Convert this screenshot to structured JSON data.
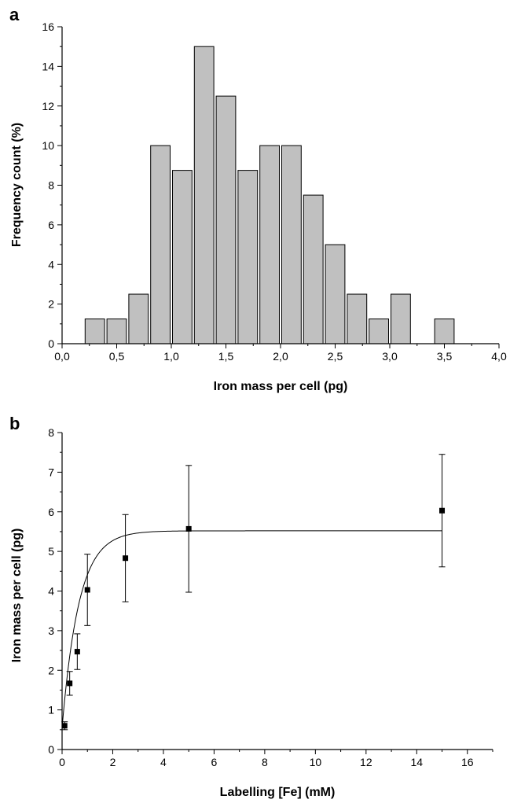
{
  "chart_data": [
    {
      "panel": "a",
      "type": "bar",
      "xlabel": "Iron mass per cell (pg)",
      "ylabel": "Frequency count (%)",
      "xlim": [
        0,
        4
      ],
      "ylim": [
        0,
        16
      ],
      "xticks": [
        "0,0",
        "0,5",
        "1,0",
        "1,5",
        "2,0",
        "2,5",
        "3,0",
        "3,5",
        "4,0"
      ],
      "yticks": [
        "0",
        "2",
        "4",
        "6",
        "8",
        "10",
        "12",
        "14",
        "16"
      ],
      "bin_width": 0.2,
      "bin_centers": [
        0.3,
        0.5,
        0.7,
        0.9,
        1.1,
        1.3,
        1.5,
        1.7,
        1.9,
        2.1,
        2.3,
        2.5,
        2.7,
        2.9,
        3.1,
        3.3,
        3.5
      ],
      "values": [
        1.25,
        1.25,
        2.5,
        10,
        8.75,
        15,
        12.5,
        8.75,
        10,
        10,
        7.5,
        5,
        2.5,
        1.25,
        2.5,
        0,
        1.25
      ],
      "bar_color": "#c0c0c0",
      "grid": false
    },
    {
      "panel": "b",
      "type": "scatter",
      "xlabel": "Labelling [Fe] (mM)",
      "ylabel": "Iron mass per cell (pg)",
      "xlim": [
        0,
        17
      ],
      "ylim": [
        0,
        8
      ],
      "xticks": [
        "0",
        "2",
        "4",
        "6",
        "8",
        "10",
        "12",
        "14",
        "16"
      ],
      "yticks": [
        "0",
        "1",
        "2",
        "3",
        "4",
        "5",
        "6",
        "7",
        "8"
      ],
      "points": [
        {
          "x": 0.1,
          "y": 0.6,
          "err": 0.1
        },
        {
          "x": 0.3,
          "y": 1.67,
          "err": 0.3
        },
        {
          "x": 0.6,
          "y": 2.47,
          "err": 0.45
        },
        {
          "x": 1.0,
          "y": 4.03,
          "err": 0.9
        },
        {
          "x": 2.5,
          "y": 4.83,
          "err": 1.1
        },
        {
          "x": 5.0,
          "y": 5.57,
          "err": 1.6
        },
        {
          "x": 15.0,
          "y": 6.03,
          "err": 1.42
        }
      ],
      "fit": {
        "model": "exponential saturation",
        "y0": 0.55,
        "ymax": 5.52,
        "k": 1.5,
        "x_range": [
          0,
          15
        ]
      },
      "grid": false
    }
  ]
}
